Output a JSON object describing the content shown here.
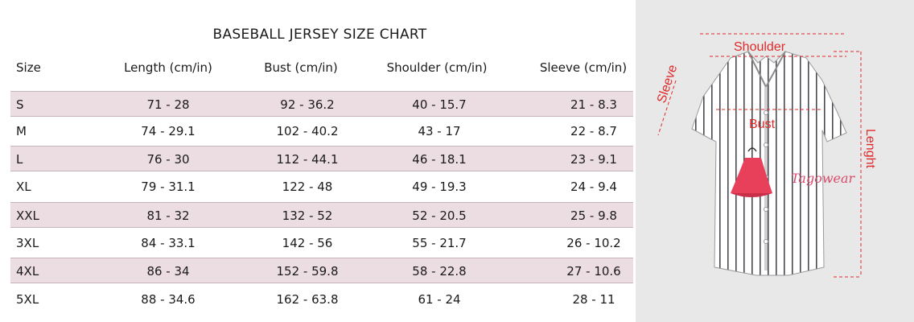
{
  "title": "BASEBALL JERSEY SIZE CHART",
  "headers": [
    "Size",
    "Length (cm/in)",
    "Bust (cm/in)",
    "Shoulder (cm/in)",
    "Sleeve (cm/in)"
  ],
  "rows": [
    [
      "S",
      "71  - 28",
      "92  - 36.2",
      "40 - 15.7",
      "21  - 8.3"
    ],
    [
      "M",
      "74 - 29.1",
      "102 - 40.2",
      "43 - 17",
      "22 - 8.7"
    ],
    [
      "L",
      "76 - 30",
      "112  - 44.1",
      "46 - 18.1",
      "23 - 9.1"
    ],
    [
      "XL",
      "79 - 31.1",
      "122 - 48",
      "49 - 19.3",
      "24 - 9.4"
    ],
    [
      "XXL",
      "81 - 32",
      "132 - 52",
      "52 - 20.5",
      "25 - 9.8"
    ],
    [
      "3XL",
      "84 - 33.1",
      "142 - 56",
      "55 - 21.7",
      "26 - 10.2"
    ],
    [
      "4XL",
      "86 - 34",
      "152 - 59.8",
      "58 - 22.8",
      "27 - 10.6"
    ],
    [
      "5XL",
      "88 - 34.6",
      "162 - 63.8",
      "61  - 24",
      "28 - 11"
    ]
  ],
  "diagram": {
    "shoulder": "Shoulder",
    "bust": "Bust",
    "sleeve": "Sleeve",
    "length": "Lenght",
    "brand": "Tagowear"
  },
  "colors": {
    "row_shade": "#ecdde3",
    "measure_red": "#e02a2a",
    "panel_bg": "#e8e8e8"
  }
}
